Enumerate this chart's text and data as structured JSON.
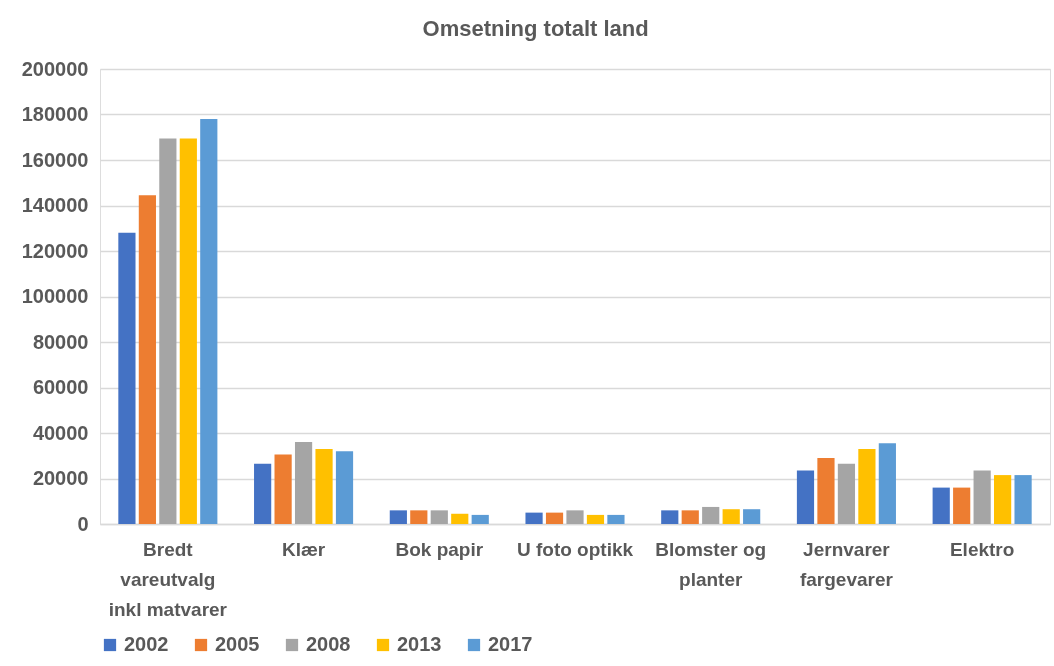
{
  "chart_data": {
    "type": "bar",
    "title": "Omsetning totalt land",
    "categories": [
      "Bredt vareutvalg inkl matvarer",
      "Klær",
      "Bok papir",
      "U foto optikk",
      "Blomster og planter",
      "Jernvarer fargevarer",
      "Elektro"
    ],
    "series": [
      {
        "name": "2002",
        "color": "#4472c4",
        "values": [
          128000,
          26500,
          6000,
          5000,
          6000,
          23500,
          16000
        ]
      },
      {
        "name": "2005",
        "color": "#ed7d31",
        "values": [
          144500,
          30500,
          6000,
          5000,
          6000,
          29000,
          16000
        ]
      },
      {
        "name": "2008",
        "color": "#a5a5a5",
        "values": [
          169500,
          36000,
          6000,
          6000,
          7500,
          26500,
          23500
        ]
      },
      {
        "name": "2013",
        "color": "#ffc000",
        "values": [
          169500,
          33000,
          4500,
          4000,
          6500,
          33000,
          21500
        ]
      },
      {
        "name": "2017",
        "color": "#5b9bd5",
        "values": [
          178000,
          32000,
          4000,
          4000,
          6500,
          35500,
          21500
        ]
      }
    ],
    "ylim": [
      0,
      200000
    ],
    "yticks": [
      0,
      20000,
      40000,
      60000,
      80000,
      100000,
      120000,
      140000,
      160000,
      180000,
      200000
    ],
    "grid": "y",
    "legend": "bottom"
  }
}
